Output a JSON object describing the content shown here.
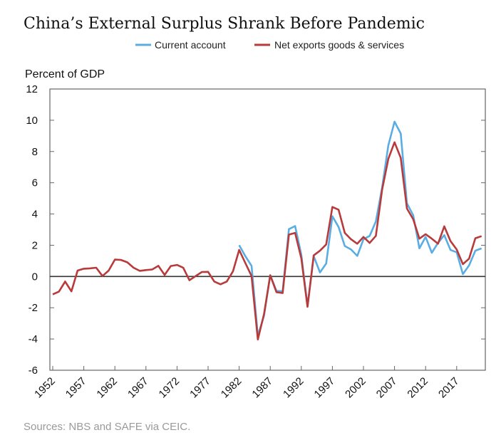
{
  "chart_data": {
    "type": "line",
    "title": "China’s External Surplus Shrank Before Pandemic",
    "ylabel": "Percent of GDP",
    "xlabel": "",
    "source": "Sources: NBS and SAFE via CEIC.",
    "ylim": [
      -6,
      12
    ],
    "yticks": [
      "12",
      "10",
      "8",
      "6",
      "4",
      "2",
      "0",
      "-2",
      "-4",
      "-6"
    ],
    "xticks": [
      "1952",
      "1957",
      "1962",
      "1967",
      "1972",
      "1977",
      "1982",
      "1987",
      "1992",
      "1997",
      "2002",
      "2007",
      "2012",
      "2017"
    ],
    "legend_position": "top",
    "grid": false,
    "series": [
      {
        "name": "Current account",
        "color": "#5aade3",
        "x": [
          1982,
          1983,
          1984,
          1985,
          1986,
          1987,
          1988,
          1989,
          1990,
          1991,
          1992,
          1993,
          1994,
          1995,
          1996,
          1997,
          1998,
          1999,
          2000,
          2001,
          2002,
          2003,
          2004,
          2005,
          2006,
          2007,
          2008,
          2009,
          2010,
          2011,
          2012,
          2013,
          2014,
          2015,
          2016,
          2017,
          2018,
          2019,
          2020,
          2021
        ],
        "values": [
          2.0,
          1.3,
          0.68,
          -3.8,
          -2.5,
          0.08,
          -0.92,
          -0.95,
          3.03,
          3.23,
          1.39,
          -1.9,
          1.3,
          0.26,
          0.83,
          3.85,
          3.17,
          1.95,
          1.73,
          1.32,
          2.38,
          2.6,
          3.52,
          5.7,
          8.39,
          9.91,
          9.15,
          4.68,
          3.92,
          1.8,
          2.53,
          1.52,
          2.15,
          2.65,
          1.7,
          1.55,
          0.15,
          0.71,
          1.65,
          1.8
        ]
      },
      {
        "name": "Net exports goods & services",
        "color": "#b83a3a",
        "x": [
          1952,
          1953,
          1954,
          1955,
          1956,
          1957,
          1958,
          1959,
          1960,
          1961,
          1962,
          1963,
          1964,
          1965,
          1966,
          1967,
          1968,
          1969,
          1970,
          1971,
          1972,
          1973,
          1974,
          1975,
          1976,
          1977,
          1978,
          1979,
          1980,
          1981,
          1982,
          1983,
          1984,
          1985,
          1986,
          1987,
          1988,
          1989,
          1990,
          1991,
          1992,
          1993,
          1994,
          1995,
          1996,
          1997,
          1998,
          1999,
          2000,
          2001,
          2002,
          2003,
          2004,
          2005,
          2006,
          2007,
          2008,
          2009,
          2010,
          2011,
          2012,
          2013,
          2014,
          2015,
          2016,
          2017,
          2018,
          2019,
          2020,
          2021
        ],
        "values": [
          -1.14,
          -0.97,
          -0.32,
          -0.95,
          0.38,
          0.5,
          0.52,
          0.56,
          0.03,
          0.38,
          1.08,
          1.06,
          0.91,
          0.56,
          0.36,
          0.41,
          0.45,
          0.68,
          0.1,
          0.67,
          0.74,
          0.56,
          -0.24,
          0.03,
          0.29,
          0.3,
          -0.32,
          -0.5,
          -0.32,
          0.33,
          1.7,
          0.86,
          0.03,
          -4.03,
          -2.4,
          0.08,
          -1.0,
          -1.06,
          2.68,
          2.79,
          1.17,
          -1.94,
          1.35,
          1.65,
          2.05,
          4.45,
          4.27,
          2.79,
          2.38,
          2.1,
          2.53,
          2.15,
          2.6,
          5.56,
          7.53,
          8.59,
          7.6,
          4.35,
          3.67,
          2.42,
          2.71,
          2.42,
          2.1,
          3.21,
          2.27,
          1.73,
          0.79,
          1.14,
          2.45,
          2.58
        ]
      }
    ]
  }
}
